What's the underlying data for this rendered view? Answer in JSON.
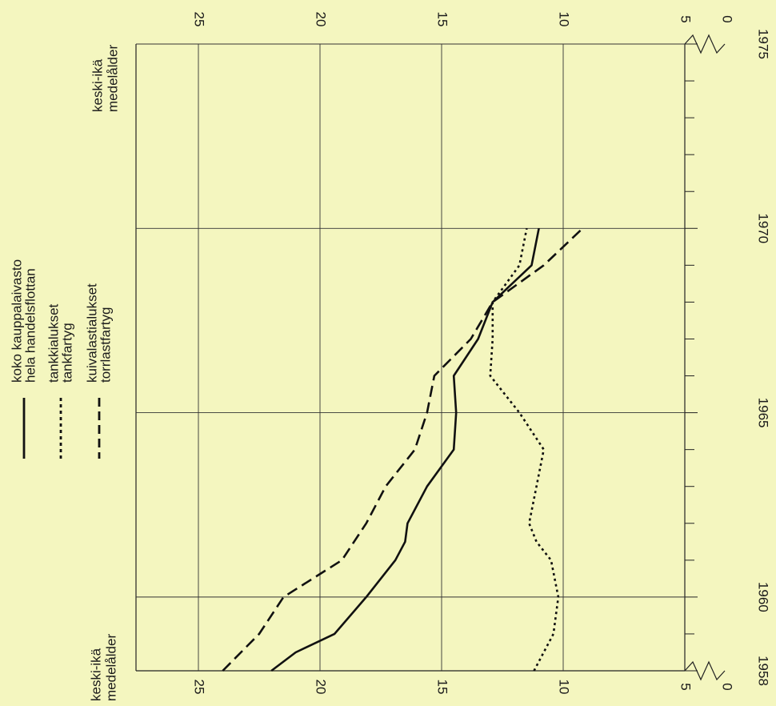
{
  "chart_data": {
    "type": "line",
    "orientation": "rotated-90",
    "x_ticks": [
      1958,
      1960,
      1965,
      1970,
      1975
    ],
    "x_minor_ticks": [
      1959,
      1961,
      1962,
      1963,
      1964,
      1966,
      1967,
      1968,
      1969,
      1971,
      1972,
      1973,
      1974
    ],
    "y_ticks": [
      "25",
      "20",
      "15",
      "10",
      "5",
      "0"
    ],
    "y_axis_break": true,
    "ylabel_start": "keski-ikä\nmedelålder",
    "ylabel_end": "keski-ikä\nmedelålder",
    "grid": true,
    "legend": "top-left",
    "series": [
      {
        "name": "koko kauppalaivasto\nhela handelsflottan",
        "style": "solid",
        "x": [
          1958,
          1958.5,
          1959,
          1960,
          1961,
          1961.5,
          1962,
          1963,
          1964,
          1965,
          1966,
          1967,
          1968,
          1969,
          1970
        ],
        "y": [
          22.0,
          21.0,
          19.4,
          18.1,
          16.9,
          16.5,
          16.4,
          15.6,
          14.5,
          14.4,
          14.5,
          13.5,
          12.9,
          11.3,
          11.0
        ]
      },
      {
        "name": "tankkialukset\ntankfartyg",
        "style": "dotted",
        "x": [
          1958,
          1959,
          1960,
          1961,
          1961.5,
          1962,
          1963,
          1964,
          1965,
          1966,
          1967,
          1968,
          1969,
          1970
        ],
        "y": [
          11.2,
          10.4,
          10.2,
          10.5,
          11.1,
          11.4,
          11.1,
          10.8,
          11.8,
          13.0,
          12.9,
          12.9,
          11.8,
          11.5
        ]
      },
      {
        "name": "kuivalastialukset\ntorrlastfartyg",
        "style": "dashed",
        "x": [
          1958,
          1959,
          1960,
          1961,
          1962,
          1963,
          1964,
          1965,
          1966,
          1967,
          1968,
          1969,
          1970
        ],
        "y": [
          24.0,
          22.5,
          21.5,
          19.1,
          18.1,
          17.3,
          16.1,
          15.6,
          15.3,
          13.8,
          12.9,
          10.8,
          9.2
        ]
      }
    ]
  }
}
